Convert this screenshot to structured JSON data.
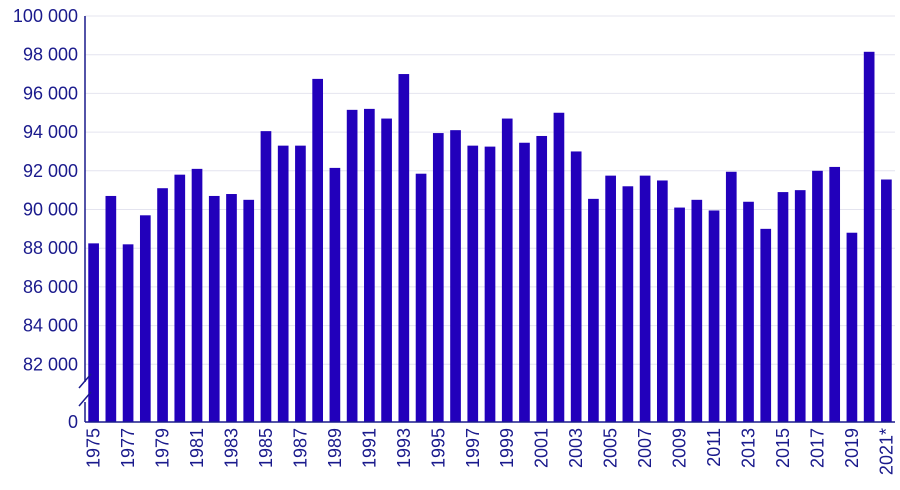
{
  "chart_data": {
    "type": "bar",
    "title": "",
    "xlabel": "",
    "ylabel": "",
    "ylim": [
      80000,
      100000
    ],
    "axis_break": true,
    "grid": true,
    "bar_color": "#2200bb",
    "axis_color": "#1a1a8c",
    "y_ticks": [
      {
        "value": 82000,
        "label": "82 000"
      },
      {
        "value": 84000,
        "label": "84 000"
      },
      {
        "value": 86000,
        "label": "86 000"
      },
      {
        "value": 88000,
        "label": "88 000"
      },
      {
        "value": 90000,
        "label": "90 000"
      },
      {
        "value": 92000,
        "label": "92 000"
      },
      {
        "value": 94000,
        "label": "94 000"
      },
      {
        "value": 96000,
        "label": "96 000"
      },
      {
        "value": 98000,
        "label": "98 000"
      },
      {
        "value": 100000,
        "label": "100 000"
      }
    ],
    "zero_label": "0",
    "categories": [
      "1975",
      "1976",
      "1977",
      "1978",
      "1979",
      "1980",
      "1981",
      "1982",
      "1983",
      "1984",
      "1985",
      "1986",
      "1987",
      "1988",
      "1989",
      "1990",
      "1991",
      "1992",
      "1993",
      "1994",
      "1995",
      "1996",
      "1997",
      "1998",
      "1999",
      "2000",
      "2001",
      "2002",
      "2003",
      "2004",
      "2005",
      "2006",
      "2007",
      "2008",
      "2009",
      "2010",
      "2011",
      "2012",
      "2013",
      "2014",
      "2015",
      "2016",
      "2017",
      "2018",
      "2019",
      "2020",
      "2021*"
    ],
    "values": [
      88250,
      90700,
      88200,
      89700,
      91100,
      91800,
      92100,
      90700,
      90800,
      90500,
      94050,
      93300,
      93300,
      96750,
      92150,
      95150,
      95200,
      94700,
      97000,
      91850,
      93950,
      94100,
      93300,
      93250,
      94700,
      93450,
      93800,
      95000,
      93000,
      90550,
      91750,
      91200,
      91750,
      91500,
      90100,
      90500,
      89950,
      91950,
      90400,
      89000,
      90900,
      91000,
      92000,
      92200,
      88800,
      98150,
      91550
    ]
  }
}
